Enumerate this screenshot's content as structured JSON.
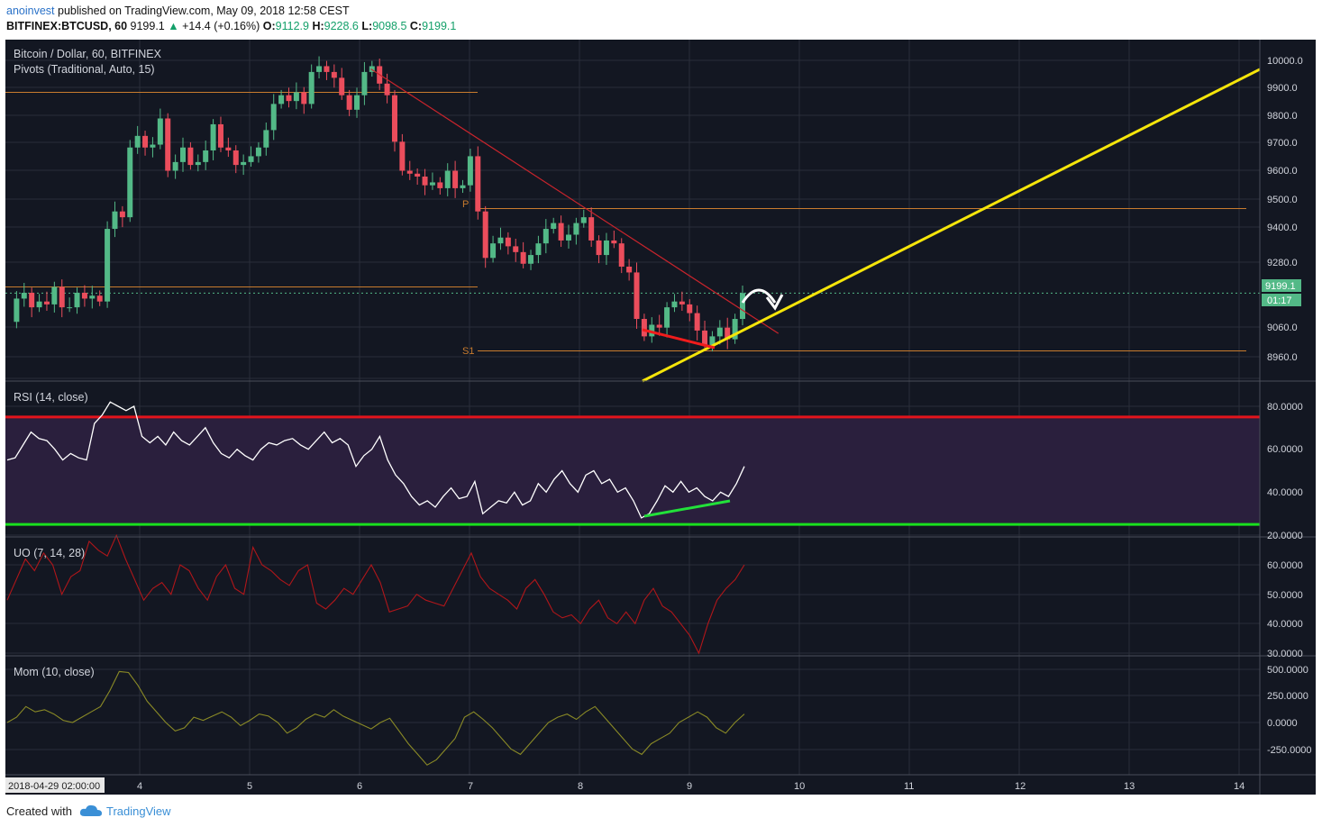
{
  "header": {
    "author": "anoinvest",
    "published": "published on TradingView.com, May 09, 2018 12:58 CEST",
    "symbol": "BITFINEX:BTCUSD, 60",
    "last": "9199.1",
    "change": "+14.4 (+0.16%)",
    "open_label": "O:",
    "open": "9112.9",
    "high_label": "H:",
    "high": "9228.6",
    "low_label": "L:",
    "low": "9098.5",
    "close_label": "C:",
    "close": "9199.1"
  },
  "colors": {
    "panel_bg": "#131722",
    "grid": "#2a2e39",
    "up": "#53b987",
    "down": "#eb4d5c",
    "pivot": "#c87b2e",
    "yellow_line": "#f5e50a",
    "rsi_upper": "#e3141c",
    "rsi_lower": "#19e01e",
    "rsi_fill": "#2a1f3d",
    "uo": "#b0161a",
    "mom": "#8a8a26",
    "price_label": "#53b987"
  },
  "main_panel": {
    "title": "Bitcoin / Dollar, 60, BITFINEX",
    "indicator": "Pivots (Traditional, Auto, 15)",
    "pivot_labels": [
      "P",
      "S1"
    ],
    "price_tag": "9199.1",
    "countdown": "01:17",
    "yticks": [
      "10000.0",
      "9900.0",
      "9800.0",
      "9700.0",
      "9600.0",
      "9500.0",
      "9400.0",
      "9280.0",
      "9060.0",
      "8960.0"
    ]
  },
  "rsi_panel": {
    "title": "RSI (14, close)",
    "yticks": [
      "80.0000",
      "60.0000",
      "40.0000",
      "20.0000"
    ]
  },
  "uo_panel": {
    "title": "UO (7, 14, 28)",
    "yticks": [
      "60.0000",
      "50.0000",
      "40.0000",
      "30.0000"
    ]
  },
  "mom_panel": {
    "title": "Mom (10, close)",
    "yticks": [
      "500.0000",
      "250.0000",
      "0.0000",
      "-250.0000"
    ]
  },
  "xaxis": {
    "cursor_label": "2018-04-29 02:00:00",
    "ticks": [
      "4",
      "5",
      "6",
      "7",
      "8",
      "9",
      "10",
      "11",
      "12",
      "13",
      "14"
    ]
  },
  "footer": {
    "created_with": "Created with",
    "brand": "TradingView"
  },
  "chart_data": {
    "type": "candlestick",
    "title": "Bitcoin / Dollar, 60, BITFINEX",
    "x_unit": "hourly candles, May 2018",
    "x_ticks": [
      "4",
      "5",
      "6",
      "7",
      "8",
      "9",
      "10",
      "11",
      "12",
      "13",
      "14"
    ],
    "y_range_price": [
      8900,
      10050
    ],
    "price_path": [
      9100,
      9180,
      9200,
      9150,
      9170,
      9160,
      9220,
      9150,
      9150,
      9200,
      9180,
      9190,
      9170,
      9420,
      9480,
      9460,
      9700,
      9740,
      9700,
      9710,
      9800,
      9620,
      9650,
      9700,
      9640,
      9650,
      9690,
      9780,
      9700,
      9690,
      9640,
      9650,
      9670,
      9700,
      9760,
      9850,
      9880,
      9860,
      9890,
      9850,
      9960,
      9980,
      9960,
      9940,
      9880,
      9830,
      9880,
      9960,
      9980,
      9920,
      9880,
      9720,
      9620,
      9610,
      9600,
      9570,
      9580,
      9560,
      9620,
      9560,
      9570,
      9670,
      9480,
      9320,
      9370,
      9390,
      9360,
      9340,
      9300,
      9330,
      9370,
      9420,
      9440,
      9380,
      9400,
      9440,
      9460,
      9380,
      9330,
      9380,
      9370,
      9290,
      9270,
      9110,
      9050,
      9090,
      9080,
      9150,
      9170,
      9160,
      9130,
      9070,
      9020,
      9050,
      9080,
      9040,
      9110,
      9199
    ],
    "pivots": {
      "R1_early": 9890,
      "S1_early": 9220,
      "P": 9490,
      "S1": 9000
    },
    "trendlines": [
      {
        "name": "descending resistance",
        "from": [
          6.1,
          9970
        ],
        "to": [
          9.8,
          9060
        ]
      },
      {
        "name": "ascending support (yellow)",
        "from": [
          8.5,
          8900
        ],
        "to": [
          14.2,
          9960
        ]
      }
    ],
    "rsi": {
      "upper": 75,
      "lower": 25,
      "values": [
        55,
        56,
        62,
        68,
        65,
        64,
        60,
        55,
        58,
        56,
        55,
        72,
        76,
        82,
        80,
        78,
        80,
        66,
        63,
        66,
        62,
        68,
        64,
        62,
        66,
        70,
        63,
        58,
        56,
        60,
        57,
        55,
        60,
        63,
        62,
        64,
        65,
        62,
        60,
        64,
        68,
        63,
        65,
        62,
        52,
        57,
        60,
        66,
        55,
        48,
        44,
        38,
        34,
        36,
        33,
        38,
        42,
        37,
        38,
        45,
        30,
        33,
        36,
        35,
        40,
        34,
        36,
        44,
        40,
        46,
        50,
        44,
        40,
        48,
        50,
        44,
        46,
        40,
        42,
        36,
        28,
        30,
        36,
        43,
        40,
        45,
        40,
        42,
        38,
        36,
        40,
        38,
        44,
        52
      ]
    },
    "uo": {
      "values": [
        48,
        55,
        62,
        58,
        64,
        60,
        50,
        56,
        58,
        68,
        65,
        63,
        70,
        62,
        55,
        48,
        52,
        54,
        50,
        60,
        58,
        52,
        48,
        56,
        60,
        52,
        50,
        66,
        60,
        58,
        55,
        53,
        58,
        60,
        47,
        45,
        48,
        52,
        50,
        55,
        60,
        54,
        44,
        45,
        46,
        50,
        48,
        47,
        46,
        52,
        58,
        64,
        56,
        52,
        50,
        48,
        45,
        52,
        55,
        50,
        44,
        42,
        43,
        40,
        45,
        48,
        42,
        40,
        44,
        40,
        48,
        52,
        46,
        44,
        40,
        36,
        30,
        40,
        48,
        52,
        55,
        60
      ]
    },
    "mom": {
      "values": [
        0,
        50,
        150,
        100,
        120,
        80,
        20,
        0,
        50,
        100,
        150,
        300,
        480,
        470,
        350,
        200,
        100,
        0,
        -80,
        -50,
        50,
        20,
        60,
        100,
        50,
        -30,
        20,
        80,
        60,
        0,
        -100,
        -50,
        30,
        80,
        50,
        120,
        60,
        20,
        -20,
        -60,
        0,
        40,
        -80,
        -200,
        -300,
        -400,
        -350,
        -250,
        -150,
        50,
        100,
        30,
        -50,
        -150,
        -250,
        -300,
        -200,
        -100,
        0,
        50,
        80,
        30,
        100,
        150,
        50,
        -50,
        -150,
        -250,
        -300,
        -200,
        -150,
        -100,
        0,
        50,
        100,
        50,
        -50,
        -100,
        0,
        80
      ]
    }
  }
}
